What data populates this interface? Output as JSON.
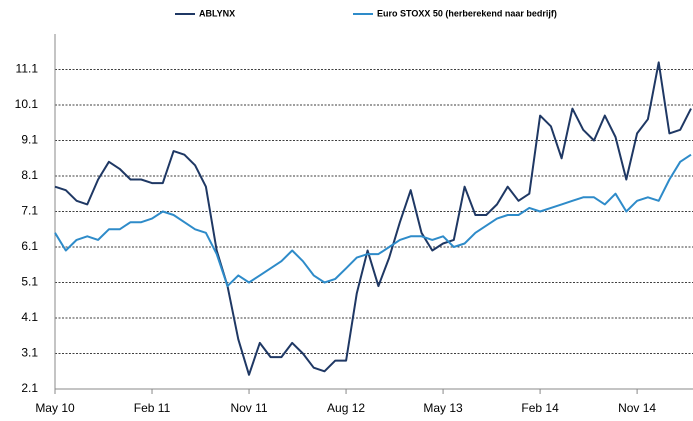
{
  "chart_data": {
    "type": "line",
    "categories": [
      "May 10",
      null,
      null,
      null,
      null,
      null,
      null,
      null,
      null,
      "Feb 11",
      null,
      null,
      null,
      null,
      null,
      null,
      null,
      null,
      "Nov 11",
      null,
      null,
      null,
      null,
      null,
      null,
      null,
      null,
      "Aug 12",
      null,
      null,
      null,
      null,
      null,
      null,
      null,
      null,
      "May 13",
      null,
      null,
      null,
      null,
      null,
      null,
      null,
      null,
      "Feb 14",
      null,
      null,
      null,
      null,
      null,
      null,
      null,
      null,
      "Nov 14",
      null,
      null,
      null,
      null,
      null
    ],
    "series": [
      {
        "name": "ABLYNX",
        "color": "#1f3864",
        "values": [
          7.8,
          7.7,
          7.4,
          7.3,
          8.0,
          8.5,
          8.3,
          8.0,
          8.0,
          7.9,
          7.9,
          8.8,
          8.7,
          8.4,
          7.8,
          6.0,
          5.0,
          3.5,
          2.5,
          3.4,
          3.0,
          3.0,
          3.4,
          3.1,
          2.7,
          2.6,
          2.9,
          2.9,
          4.8,
          6.0,
          5.0,
          5.8,
          6.8,
          7.7,
          6.5,
          6.0,
          6.2,
          6.3,
          7.8,
          7.0,
          7.0,
          7.3,
          7.8,
          7.4,
          7.6,
          9.8,
          9.5,
          8.6,
          10.0,
          9.4,
          9.1,
          9.8,
          9.2,
          8.0,
          9.3,
          9.7,
          11.3,
          9.3,
          9.4,
          10.0
        ]
      },
      {
        "name": "Euro STOXX 50 (herberekend naar bedrijf)",
        "color": "#2e8bc9",
        "values": [
          6.5,
          6.0,
          6.3,
          6.4,
          6.3,
          6.6,
          6.6,
          6.8,
          6.8,
          6.9,
          7.1,
          7.0,
          6.8,
          6.6,
          6.5,
          5.9,
          5.0,
          5.3,
          5.1,
          5.3,
          5.5,
          5.7,
          6.0,
          5.7,
          5.3,
          5.1,
          5.2,
          5.5,
          5.8,
          5.9,
          5.9,
          6.1,
          6.3,
          6.4,
          6.4,
          6.3,
          6.4,
          6.1,
          6.2,
          6.5,
          6.7,
          6.9,
          7.0,
          7.0,
          7.2,
          7.1,
          7.2,
          7.3,
          7.4,
          7.5,
          7.5,
          7.3,
          7.6,
          7.1,
          7.4,
          7.5,
          7.4,
          8.0,
          8.5,
          8.7
        ]
      }
    ],
    "ylim": [
      2.1,
      12.1
    ],
    "yticks": [
      2.1,
      3.1,
      4.1,
      5.1,
      6.1,
      7.1,
      8.1,
      9.1,
      10.1,
      11.1
    ],
    "grid": true
  }
}
